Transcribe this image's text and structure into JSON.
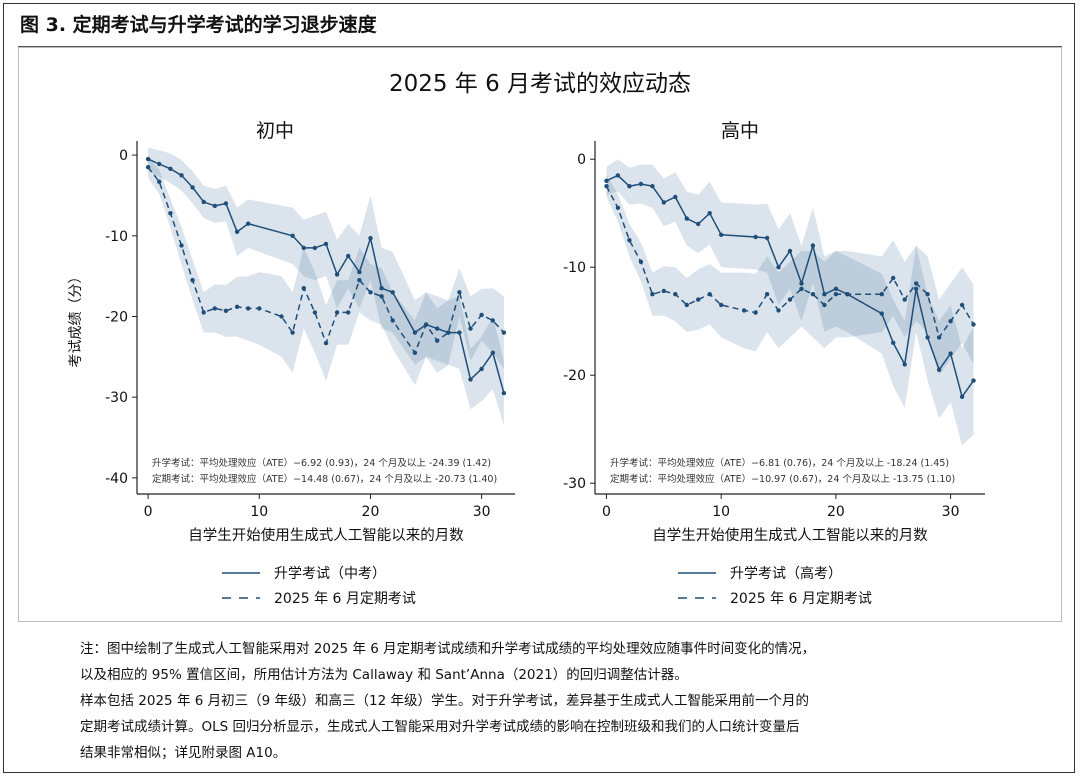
{
  "figure_title": "图 3. 定期考试与升学考试的学习退步速度",
  "main_title": "2025 年 6 月考试的效应动态",
  "chart_data": [
    {
      "type": "line",
      "title": "初中",
      "xlabel": "自学生开始使用生成式人工智能以来的月数",
      "ylabel": "考试成绩（分）",
      "xlim": [
        -1,
        33
      ],
      "ylim": [
        -42,
        1.5
      ],
      "xticks": [
        0,
        10,
        20,
        30
      ],
      "yticks": [
        0,
        -10,
        -20,
        -30,
        -40
      ],
      "legend": [
        "升学考试（中考）",
        "2025 年 6 月定期考试"
      ],
      "annotations": [
        "升学考试：平均处理效应（ATE）−6.92 (0.93)，24 个月及以上 -24.39 (1.42)",
        "定期考试：平均处理效应（ATE）−14.48 (0.67)，24 个月及以上 -20.73 (1.40)"
      ],
      "series": [
        {
          "name": "升学考试（中考）",
          "style": "solid",
          "x": [
            0,
            1,
            2,
            3,
            4,
            5,
            6,
            7,
            8,
            9,
            13,
            14,
            15,
            16,
            17,
            18,
            19,
            20,
            21,
            22,
            24,
            25,
            26,
            27,
            28,
            29,
            30,
            31,
            32
          ],
          "y": [
            -0.5,
            -1.1,
            -1.7,
            -2.5,
            -4.0,
            -5.8,
            -6.3,
            -6.0,
            -9.5,
            -8.5,
            -10.0,
            -11.5,
            -11.5,
            -11.0,
            -14.8,
            -12.5,
            -14.5,
            -10.3,
            -16.5,
            -17.0,
            -22.0,
            -21.0,
            -21.5,
            -22.0,
            -22.0,
            -27.8,
            -26.5,
            -24.5,
            -29.5
          ],
          "lower": [
            -2.0,
            -2.7,
            -3.5,
            -4.4,
            -6.0,
            -7.8,
            -8.4,
            -8.2,
            -12.5,
            -11.5,
            -13.5,
            -15.0,
            -15.5,
            -15.0,
            -19.0,
            -16.5,
            -19.0,
            -15.5,
            -21.5,
            -22.0,
            -26.0,
            -25.0,
            -25.5,
            -26.0,
            -26.5,
            -31.5,
            -30.5,
            -29.0,
            -33.5
          ],
          "upper": [
            0.9,
            0.6,
            0.2,
            -0.6,
            -2.0,
            -3.8,
            -4.2,
            -3.8,
            -6.5,
            -5.5,
            -6.5,
            -8.0,
            -7.5,
            -7.0,
            -10.5,
            -8.5,
            -10.0,
            -5.0,
            -11.5,
            -12.0,
            -18.0,
            -17.0,
            -17.5,
            -18.0,
            -17.5,
            -24.0,
            -22.5,
            -20.0,
            -25.5
          ]
        },
        {
          "name": "2025 年 6 月定期考试",
          "style": "dashed",
          "x": [
            0,
            1,
            2,
            3,
            4,
            5,
            6,
            7,
            8,
            9,
            10,
            12,
            13,
            14,
            15,
            16,
            17,
            18,
            19,
            20,
            21,
            22,
            24,
            25,
            26,
            27,
            28,
            29,
            30,
            31,
            32
          ],
          "y": [
            -1.5,
            -3.3,
            -7.2,
            -11.2,
            -15.5,
            -19.5,
            -19.0,
            -19.3,
            -18.8,
            -19.0,
            -19.0,
            -20.0,
            -22.0,
            -16.5,
            -19.5,
            -23.3,
            -19.5,
            -19.5,
            -15.5,
            -17.0,
            -17.5,
            -20.5,
            -24.5,
            -21.0,
            -23.0,
            -22.0,
            -17.0,
            -21.5,
            -19.8,
            -20.5,
            -22.0
          ],
          "lower": [
            -2.8,
            -4.8,
            -9.0,
            -13.5,
            -18.0,
            -22.0,
            -22.0,
            -22.5,
            -22.5,
            -23.0,
            -23.5,
            -25.0,
            -27.0,
            -21.5,
            -24.5,
            -28.0,
            -23.5,
            -23.5,
            -19.5,
            -20.5,
            -21.0,
            -24.0,
            -28.5,
            -25.0,
            -27.0,
            -26.0,
            -20.0,
            -25.5,
            -23.0,
            -24.5,
            -26.5
          ],
          "upper": [
            -0.2,
            -1.8,
            -5.4,
            -8.9,
            -13.0,
            -17.0,
            -16.0,
            -16.1,
            -15.1,
            -15.0,
            -14.5,
            -15.0,
            -17.0,
            -11.5,
            -14.5,
            -18.6,
            -15.5,
            -15.5,
            -11.5,
            -13.5,
            -14.0,
            -17.0,
            -20.5,
            -17.0,
            -19.0,
            -18.0,
            -14.0,
            -17.5,
            -16.6,
            -16.5,
            -17.5
          ]
        }
      ]
    },
    {
      "type": "line",
      "title": "高中",
      "xlabel": "自学生开始使用生成式人工智能以来的月数",
      "ylabel": "",
      "xlim": [
        -1,
        33
      ],
      "ylim": [
        -31,
        1.5
      ],
      "xticks": [
        0,
        10,
        20,
        30
      ],
      "yticks": [
        0,
        -10,
        -20,
        -30
      ],
      "legend": [
        "升学考试（高考）",
        "2025 年 6 月定期考试"
      ],
      "annotations": [
        "升学考试：平均处理效应（ATE）−6.81 (0.76)，24 个月及以上 -18.24 (1.45)",
        "定期考试：平均处理效应（ATE）−10.97 (0.67)，24 个月及以上 -13.75 (1.10)"
      ],
      "series": [
        {
          "name": "升学考试（高考）",
          "style": "solid",
          "x": [
            0,
            1,
            2,
            3,
            4,
            5,
            6,
            7,
            8,
            9,
            10,
            13,
            14,
            15,
            16,
            17,
            18,
            19,
            20,
            21,
            24,
            25,
            26,
            27,
            28,
            29,
            30,
            31,
            32
          ],
          "y": [
            -2.0,
            -1.5,
            -2.5,
            -2.3,
            -2.5,
            -4.0,
            -3.5,
            -5.5,
            -6.0,
            -5.0,
            -7.0,
            -7.2,
            -7.3,
            -10.0,
            -8.5,
            -11.5,
            -8.0,
            -12.5,
            -12.0,
            -12.5,
            -14.3,
            -17.0,
            -19.0,
            -12.0,
            -16.5,
            -19.5,
            -18.0,
            -22.0,
            -20.5
          ],
          "lower": [
            -3.3,
            -3.0,
            -4.2,
            -4.1,
            -4.5,
            -6.2,
            -5.8,
            -8.0,
            -8.7,
            -7.9,
            -10.0,
            -10.2,
            -10.5,
            -13.5,
            -12.0,
            -15.0,
            -11.5,
            -16.0,
            -15.5,
            -16.0,
            -18.0,
            -21.0,
            -23.0,
            -16.0,
            -20.5,
            -24.0,
            -22.5,
            -26.5,
            -25.5
          ],
          "upper": [
            -0.7,
            0.0,
            -0.8,
            -0.5,
            -0.5,
            -1.8,
            -1.2,
            -3.0,
            -3.3,
            -2.1,
            -4.0,
            -4.2,
            -4.1,
            -6.5,
            -5.0,
            -8.0,
            -4.5,
            -9.0,
            -8.5,
            -9.0,
            -10.6,
            -13.0,
            -15.0,
            -8.0,
            -12.5,
            -15.0,
            -13.5,
            -17.5,
            -15.5
          ]
        },
        {
          "name": "2025 年 6 月定期考试",
          "style": "dashed",
          "x": [
            0,
            1,
            2,
            3,
            4,
            5,
            6,
            7,
            8,
            9,
            10,
            12,
            13,
            14,
            15,
            16,
            17,
            18,
            19,
            20,
            21,
            24,
            25,
            26,
            27,
            28,
            29,
            30,
            31,
            32
          ],
          "y": [
            -2.5,
            -4.5,
            -7.5,
            -9.5,
            -12.5,
            -12.2,
            -12.5,
            -13.5,
            -13.0,
            -12.5,
            -13.5,
            -14.0,
            -14.2,
            -12.5,
            -14.0,
            -13.0,
            -12.0,
            -12.5,
            -13.5,
            -12.5,
            -12.5,
            -12.5,
            -11.0,
            -13.0,
            -11.5,
            -12.5,
            -16.5,
            -15.0,
            -13.5,
            -15.3
          ],
          "lower": [
            -3.5,
            -5.8,
            -9.0,
            -11.3,
            -14.5,
            -14.5,
            -15.0,
            -16.0,
            -15.8,
            -15.3,
            -16.5,
            -17.5,
            -17.8,
            -16.0,
            -17.5,
            -16.5,
            -15.5,
            -16.5,
            -17.5,
            -16.5,
            -16.5,
            -16.0,
            -14.5,
            -16.5,
            -15.0,
            -16.0,
            -20.0,
            -18.5,
            -17.0,
            -19.0
          ],
          "upper": [
            -1.5,
            -3.2,
            -6.0,
            -7.7,
            -10.5,
            -9.9,
            -10.0,
            -11.0,
            -10.2,
            -9.7,
            -10.5,
            -10.5,
            -10.6,
            -9.0,
            -10.5,
            -9.5,
            -8.5,
            -8.5,
            -9.5,
            -8.5,
            -8.5,
            -9.0,
            -7.5,
            -9.5,
            -8.0,
            -9.0,
            -13.0,
            -11.5,
            -10.0,
            -11.6
          ]
        }
      ]
    }
  ],
  "notes": [
    "注：图中绘制了生成式人工智能采用对 2025 年 6 月定期考试成绩和升学考试成绩的平均处理效应随事件时间变化的情况，",
    "以及相应的 95% 置信区间，所用估计方法为 Callaway 和 Sant’Anna（2021）的回归调整估计器。",
    "样本包括 2025 年 6 月初三（9 年级）和高三（12 年级）学生。对于升学考试，差异基于生成式人工智能采用前一个月的",
    "定期考试成绩计算。OLS 回归分析显示，生成式人工智能采用对升学考试成绩的影响在控制班级和我们的人口统计变量后",
    "结果非常相似；详见附录图 A10。"
  ],
  "colors": {
    "line": "#1f4e79",
    "band": "#2c5d8f",
    "text": "#222222"
  }
}
